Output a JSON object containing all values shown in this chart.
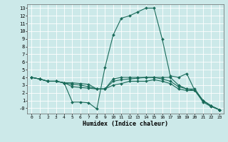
{
  "xlabel": "Humidex (Indice chaleur)",
  "background_color": "#cce9e9",
  "grid_color": "#ffffff",
  "line_color": "#1a6b5a",
  "xlim": [
    -0.5,
    23.5
  ],
  "ylim": [
    -0.7,
    13.5
  ],
  "xticks": [
    0,
    1,
    2,
    3,
    4,
    5,
    6,
    7,
    8,
    9,
    10,
    11,
    12,
    13,
    14,
    15,
    16,
    17,
    18,
    19,
    20,
    21,
    22,
    23
  ],
  "yticks": [
    0,
    1,
    2,
    3,
    4,
    5,
    6,
    7,
    8,
    9,
    10,
    11,
    12,
    13
  ],
  "ytick_labels": [
    "-0",
    "1",
    "2",
    "3",
    "4",
    "5",
    "6",
    "7",
    "8",
    "9",
    "10",
    "11",
    "12",
    "13"
  ],
  "line1_x": [
    0,
    1,
    2,
    3,
    4,
    5,
    6,
    7,
    8,
    9,
    10,
    11,
    12,
    13,
    14,
    15,
    16,
    17,
    18,
    19,
    20,
    21,
    22,
    23
  ],
  "line1_y": [
    4.0,
    3.8,
    3.5,
    3.5,
    3.3,
    0.8,
    0.8,
    0.7,
    -0.1,
    5.3,
    9.5,
    11.7,
    12.0,
    12.5,
    13.0,
    13.0,
    9.0,
    4.2,
    4.0,
    4.5,
    2.3,
    1.0,
    0.3,
    -0.2
  ],
  "line2_x": [
    0,
    1,
    2,
    3,
    4,
    5,
    6,
    7,
    8,
    9,
    10,
    11,
    12,
    13,
    14,
    15,
    16,
    17,
    18,
    19,
    20,
    21,
    22,
    23
  ],
  "line2_y": [
    4.0,
    3.8,
    3.5,
    3.5,
    3.3,
    3.3,
    3.2,
    3.1,
    2.5,
    2.5,
    3.8,
    4.0,
    4.0,
    4.0,
    4.0,
    4.0,
    4.0,
    4.0,
    3.0,
    2.5,
    2.5,
    1.0,
    0.3,
    -0.2
  ],
  "line3_x": [
    0,
    1,
    2,
    3,
    4,
    5,
    6,
    7,
    8,
    9,
    10,
    11,
    12,
    13,
    14,
    15,
    16,
    17,
    18,
    19,
    20,
    21,
    22,
    23
  ],
  "line3_y": [
    4.0,
    3.8,
    3.5,
    3.5,
    3.3,
    3.1,
    3.0,
    2.8,
    2.5,
    2.5,
    3.5,
    3.7,
    3.8,
    3.9,
    4.0,
    4.0,
    3.8,
    3.5,
    2.8,
    2.5,
    2.3,
    1.0,
    0.3,
    -0.2
  ],
  "line4_x": [
    0,
    1,
    2,
    3,
    4,
    5,
    6,
    7,
    8,
    9,
    10,
    11,
    12,
    13,
    14,
    15,
    16,
    17,
    18,
    19,
    20,
    21,
    22,
    23
  ],
  "line4_y": [
    4.0,
    3.8,
    3.5,
    3.5,
    3.3,
    2.8,
    2.7,
    2.6,
    2.5,
    2.5,
    3.0,
    3.2,
    3.5,
    3.5,
    3.5,
    3.7,
    3.5,
    3.2,
    2.5,
    2.3,
    2.3,
    0.8,
    0.2,
    -0.2
  ]
}
